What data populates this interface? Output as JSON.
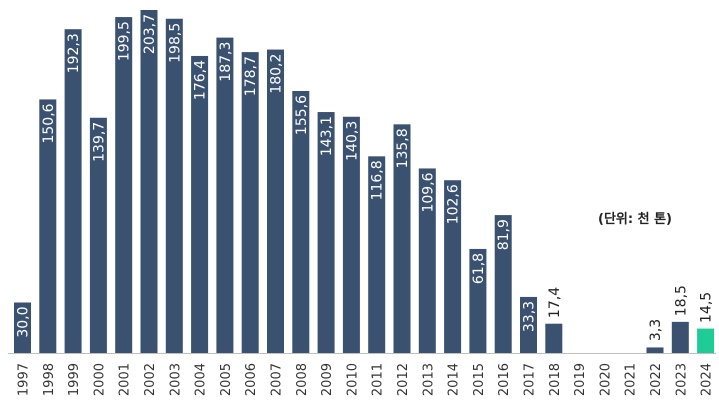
{
  "chart_data": {
    "type": "bar",
    "categories": [
      "1997",
      "1998",
      "1999",
      "2000",
      "2001",
      "2002",
      "2003",
      "2004",
      "2005",
      "2006",
      "2007",
      "2008",
      "2009",
      "2010",
      "2011",
      "2012",
      "2013",
      "2014",
      "2015",
      "2016",
      "2017",
      "2018",
      "2019",
      "2020",
      "2021",
      "2022",
      "2023",
      "2024"
    ],
    "values": [
      30.0,
      150.6,
      192.3,
      139.7,
      199.5,
      203.7,
      198.5,
      176.4,
      187.3,
      178.7,
      180.2,
      155.6,
      143.1,
      140.3,
      116.8,
      135.8,
      109.6,
      102.6,
      61.8,
      81.9,
      33.3,
      17.4,
      null,
      null,
      null,
      3.3,
      18.5,
      14.5
    ],
    "value_labels": [
      "30,0",
      "150,6",
      "192,3",
      "139,7",
      "199,5",
      "203,7",
      "198,5",
      "176,4",
      "187,3",
      "178,7",
      "180,2",
      "155,6",
      "143,1",
      "140,3",
      "116,8",
      "135,8",
      "109,6",
      "102,6",
      "61,8",
      "81,9",
      "33,3",
      "17,4",
      "",
      "",
      "",
      "3,3",
      "18,5",
      "14,5"
    ],
    "ylim": [
      0,
      203.7
    ],
    "grid": false,
    "colors": {
      "bar": "#3a5270",
      "highlight": "#1fcc96",
      "axis": "#bfbfbf"
    },
    "highlight_index": 27,
    "unit_note": "(단위: 천 톤)"
  }
}
